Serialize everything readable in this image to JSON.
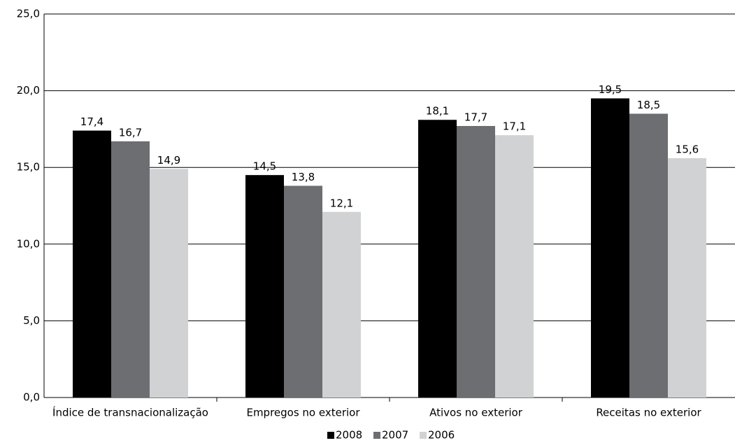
{
  "chart_data": {
    "type": "bar",
    "categories": [
      "Índice de transnacionalização",
      "Empregos no exterior",
      "Ativos no exterior",
      "Receitas no exterior"
    ],
    "series": [
      {
        "name": "2008",
        "color": "#000000",
        "values": [
          17.4,
          14.5,
          18.1,
          19.5
        ],
        "value_labels": [
          "17,4",
          "14,5",
          "18,1",
          "19,5"
        ]
      },
      {
        "name": "2007",
        "color": "#6d6e71",
        "values": [
          16.7,
          13.8,
          17.7,
          18.5
        ],
        "value_labels": [
          "16,7",
          "13,8",
          "17,7",
          "18,5"
        ]
      },
      {
        "name": "2006",
        "color": "#d1d2d4",
        "values": [
          14.9,
          12.1,
          17.1,
          15.6
        ],
        "value_labels": [
          "14,9",
          "12,1",
          "17,1",
          "15,6"
        ]
      }
    ],
    "ylim": [
      0,
      25
    ],
    "yticks": [
      {
        "value": 0,
        "label": "0,0"
      },
      {
        "value": 5,
        "label": "5,0"
      },
      {
        "value": 10,
        "label": "10,0"
      },
      {
        "value": 15,
        "label": "15,0"
      },
      {
        "value": 20,
        "label": "20,0"
      },
      {
        "value": 25,
        "label": "25,0"
      }
    ],
    "grid": true,
    "legend": "bottom"
  }
}
